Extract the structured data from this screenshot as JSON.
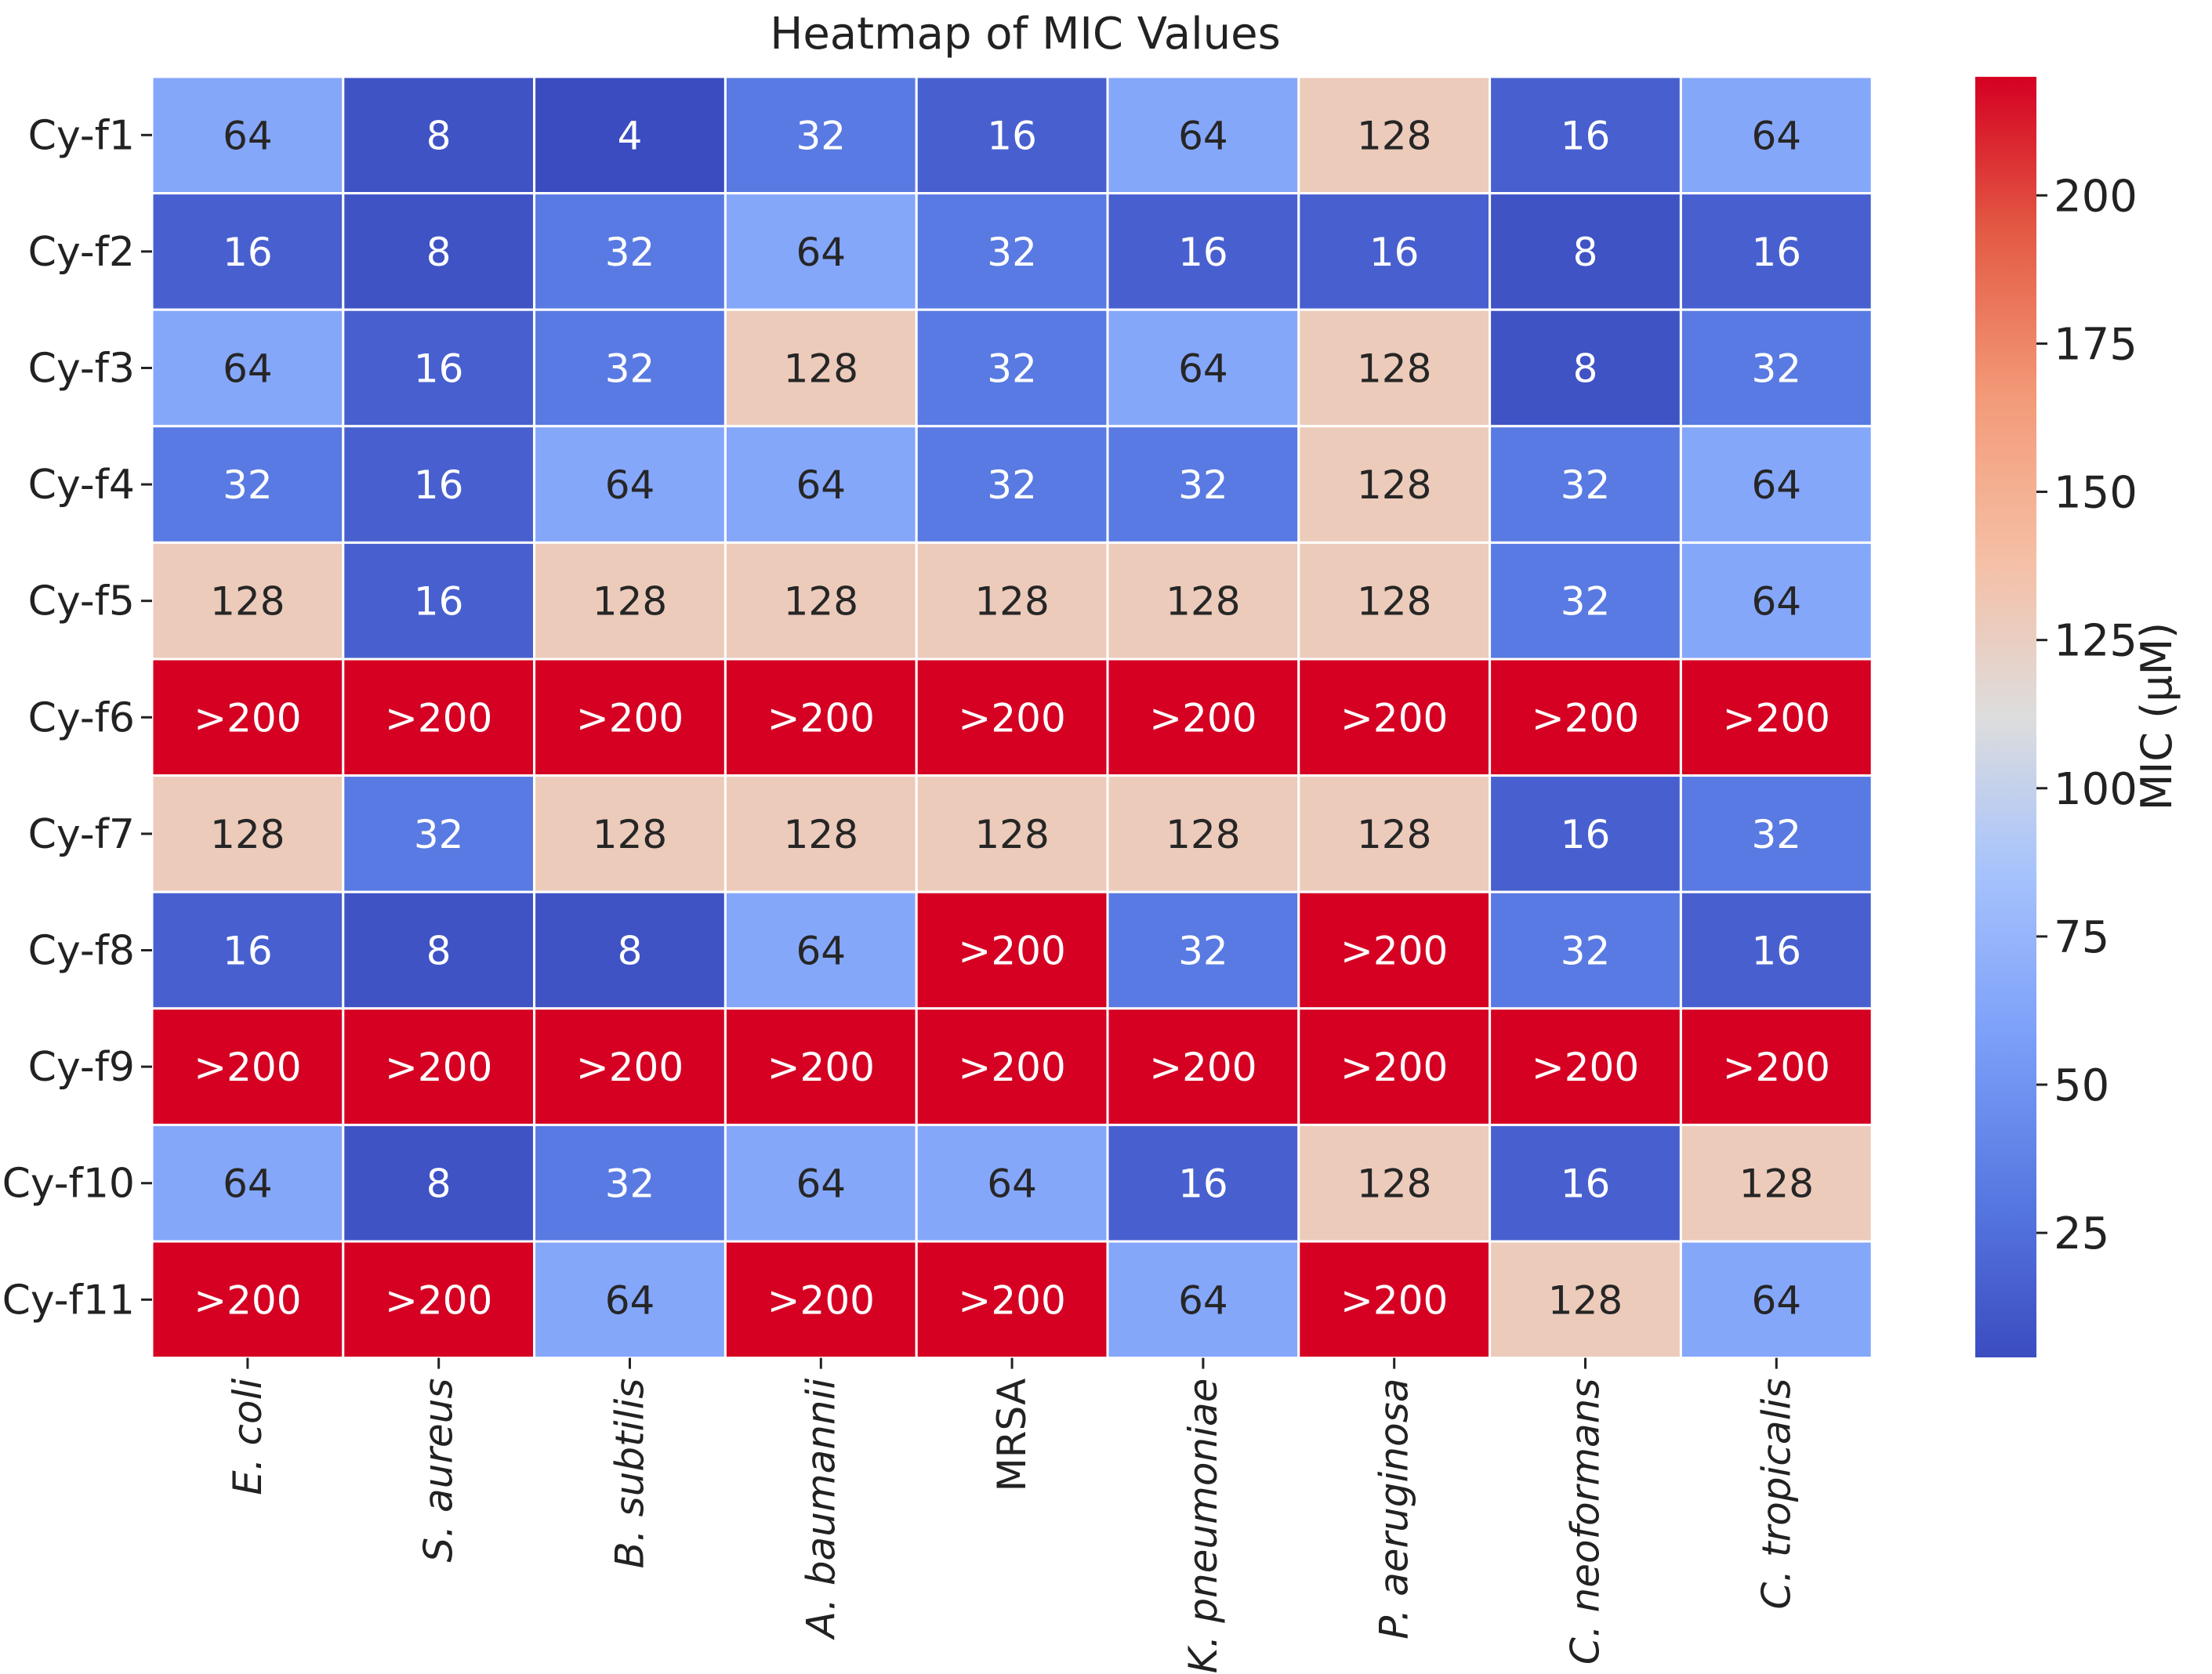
{
  "chart_data": {
    "type": "heatmap",
    "title": "Heatmap of MIC Values",
    "rows": [
      "Cy-f1",
      "Cy-f2",
      "Cy-f3",
      "Cy-f4",
      "Cy-f5",
      "Cy-f6",
      "Cy-f7",
      "Cy-f8",
      "Cy-f9",
      "Cy-f10",
      "Cy-f11"
    ],
    "columns": [
      "E. coli",
      "S. aureus",
      "B. subtilis",
      "A. baumannii",
      "MRSA",
      "K. pneumoniae",
      "P. aeruginosa",
      "C. neoformans",
      "C. tropicalis"
    ],
    "labels": [
      [
        "64",
        "8",
        "4",
        "32",
        "16",
        "64",
        "128",
        "16",
        "64"
      ],
      [
        "16",
        "8",
        "32",
        "64",
        "32",
        "16",
        "16",
        "8",
        "16"
      ],
      [
        "64",
        "16",
        "32",
        "128",
        "32",
        "64",
        "128",
        "8",
        "32"
      ],
      [
        "32",
        "16",
        "64",
        "64",
        "32",
        "32",
        "128",
        "32",
        "64"
      ],
      [
        "128",
        "16",
        "128",
        "128",
        "128",
        "128",
        "128",
        "32",
        "64"
      ],
      [
        ">200",
        ">200",
        ">200",
        ">200",
        ">200",
        ">200",
        ">200",
        ">200",
        ">200"
      ],
      [
        "128",
        "32",
        "128",
        "128",
        "128",
        "128",
        "128",
        "16",
        "32"
      ],
      [
        "16",
        "8",
        "8",
        "64",
        ">200",
        "32",
        ">200",
        "32",
        "16"
      ],
      [
        ">200",
        ">200",
        ">200",
        ">200",
        ">200",
        ">200",
        ">200",
        ">200",
        ">200"
      ],
      [
        "64",
        "8",
        "32",
        "64",
        "64",
        "16",
        "128",
        "16",
        "128"
      ],
      [
        ">200",
        ">200",
        "64",
        ">200",
        ">200",
        "64",
        ">200",
        "128",
        "64"
      ]
    ],
    "values": [
      [
        64,
        8,
        4,
        32,
        16,
        64,
        128,
        16,
        64
      ],
      [
        16,
        8,
        32,
        64,
        32,
        16,
        16,
        8,
        16
      ],
      [
        64,
        16,
        32,
        128,
        32,
        64,
        128,
        8,
        32
      ],
      [
        32,
        16,
        64,
        64,
        32,
        32,
        128,
        32,
        64
      ],
      [
        128,
        16,
        128,
        128,
        128,
        128,
        128,
        32,
        64
      ],
      [
        220,
        220,
        220,
        220,
        220,
        220,
        220,
        220,
        220
      ],
      [
        128,
        32,
        128,
        128,
        128,
        128,
        128,
        16,
        32
      ],
      [
        16,
        8,
        8,
        64,
        220,
        32,
        220,
        32,
        16
      ],
      [
        220,
        220,
        220,
        220,
        220,
        220,
        220,
        220,
        220
      ],
      [
        64,
        8,
        32,
        64,
        64,
        16,
        128,
        16,
        128
      ],
      [
        220,
        220,
        64,
        220,
        220,
        64,
        220,
        128,
        64
      ]
    ],
    "colorbar": {
      "label": "MIC (μM)",
      "range": [
        4,
        220
      ],
      "ticks": [
        25,
        50,
        75,
        100,
        125,
        150,
        175,
        200
      ],
      "colormap": "coolwarm",
      "colors": [
        "#3b4cc0",
        "#dddddd",
        "#d50022"
      ]
    },
    "xlabel": "",
    "ylabel": ""
  }
}
